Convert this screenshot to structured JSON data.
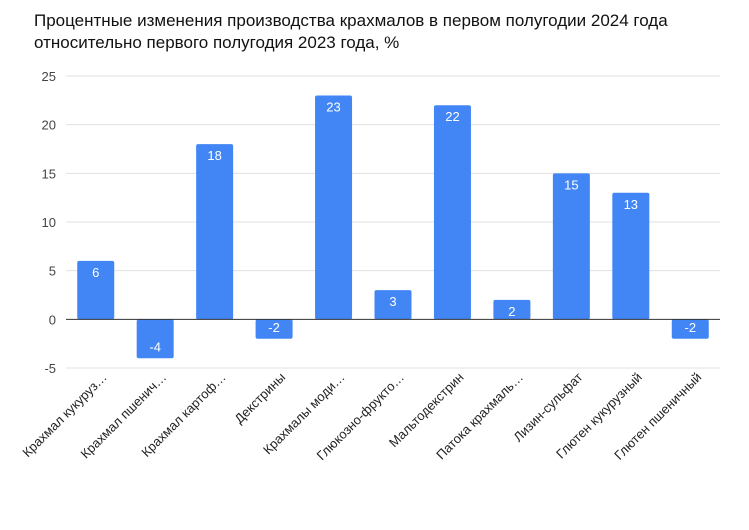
{
  "chart_data": {
    "type": "bar",
    "title_lines": [
      "Процентные изменения производства крахмалов в первом полугодии 2024 года",
      "относительно первого полугодия 2023 года, %"
    ],
    "categories": [
      "Крахмал кукуруз…",
      "Крахмал пшенич…",
      "Крахмал картоф…",
      "Декстрины",
      "Крахмалы моди…",
      "Глюкозно-фрукто…",
      "Мальтодекстрин",
      "Патока крахмаль…",
      "Лизин-сульфат",
      "Глютен кукурузный",
      "Глютен пшеничный"
    ],
    "values": [
      6,
      -4,
      18,
      -2,
      23,
      3,
      22,
      2,
      15,
      13,
      -2
    ],
    "data_labels": [
      "6",
      "-4",
      "18",
      "-2",
      "23",
      "3",
      "22",
      "2",
      "15",
      "13",
      "-2"
    ],
    "yticks": [
      -5,
      0,
      5,
      10,
      15,
      20,
      25
    ],
    "ytick_labels": [
      "-5",
      "0",
      "5",
      "10",
      "15",
      "20",
      "25"
    ],
    "ylim": [
      -5,
      25
    ],
    "grid": true,
    "bar_color": "#4285f4",
    "xlabel": "",
    "ylabel": ""
  }
}
